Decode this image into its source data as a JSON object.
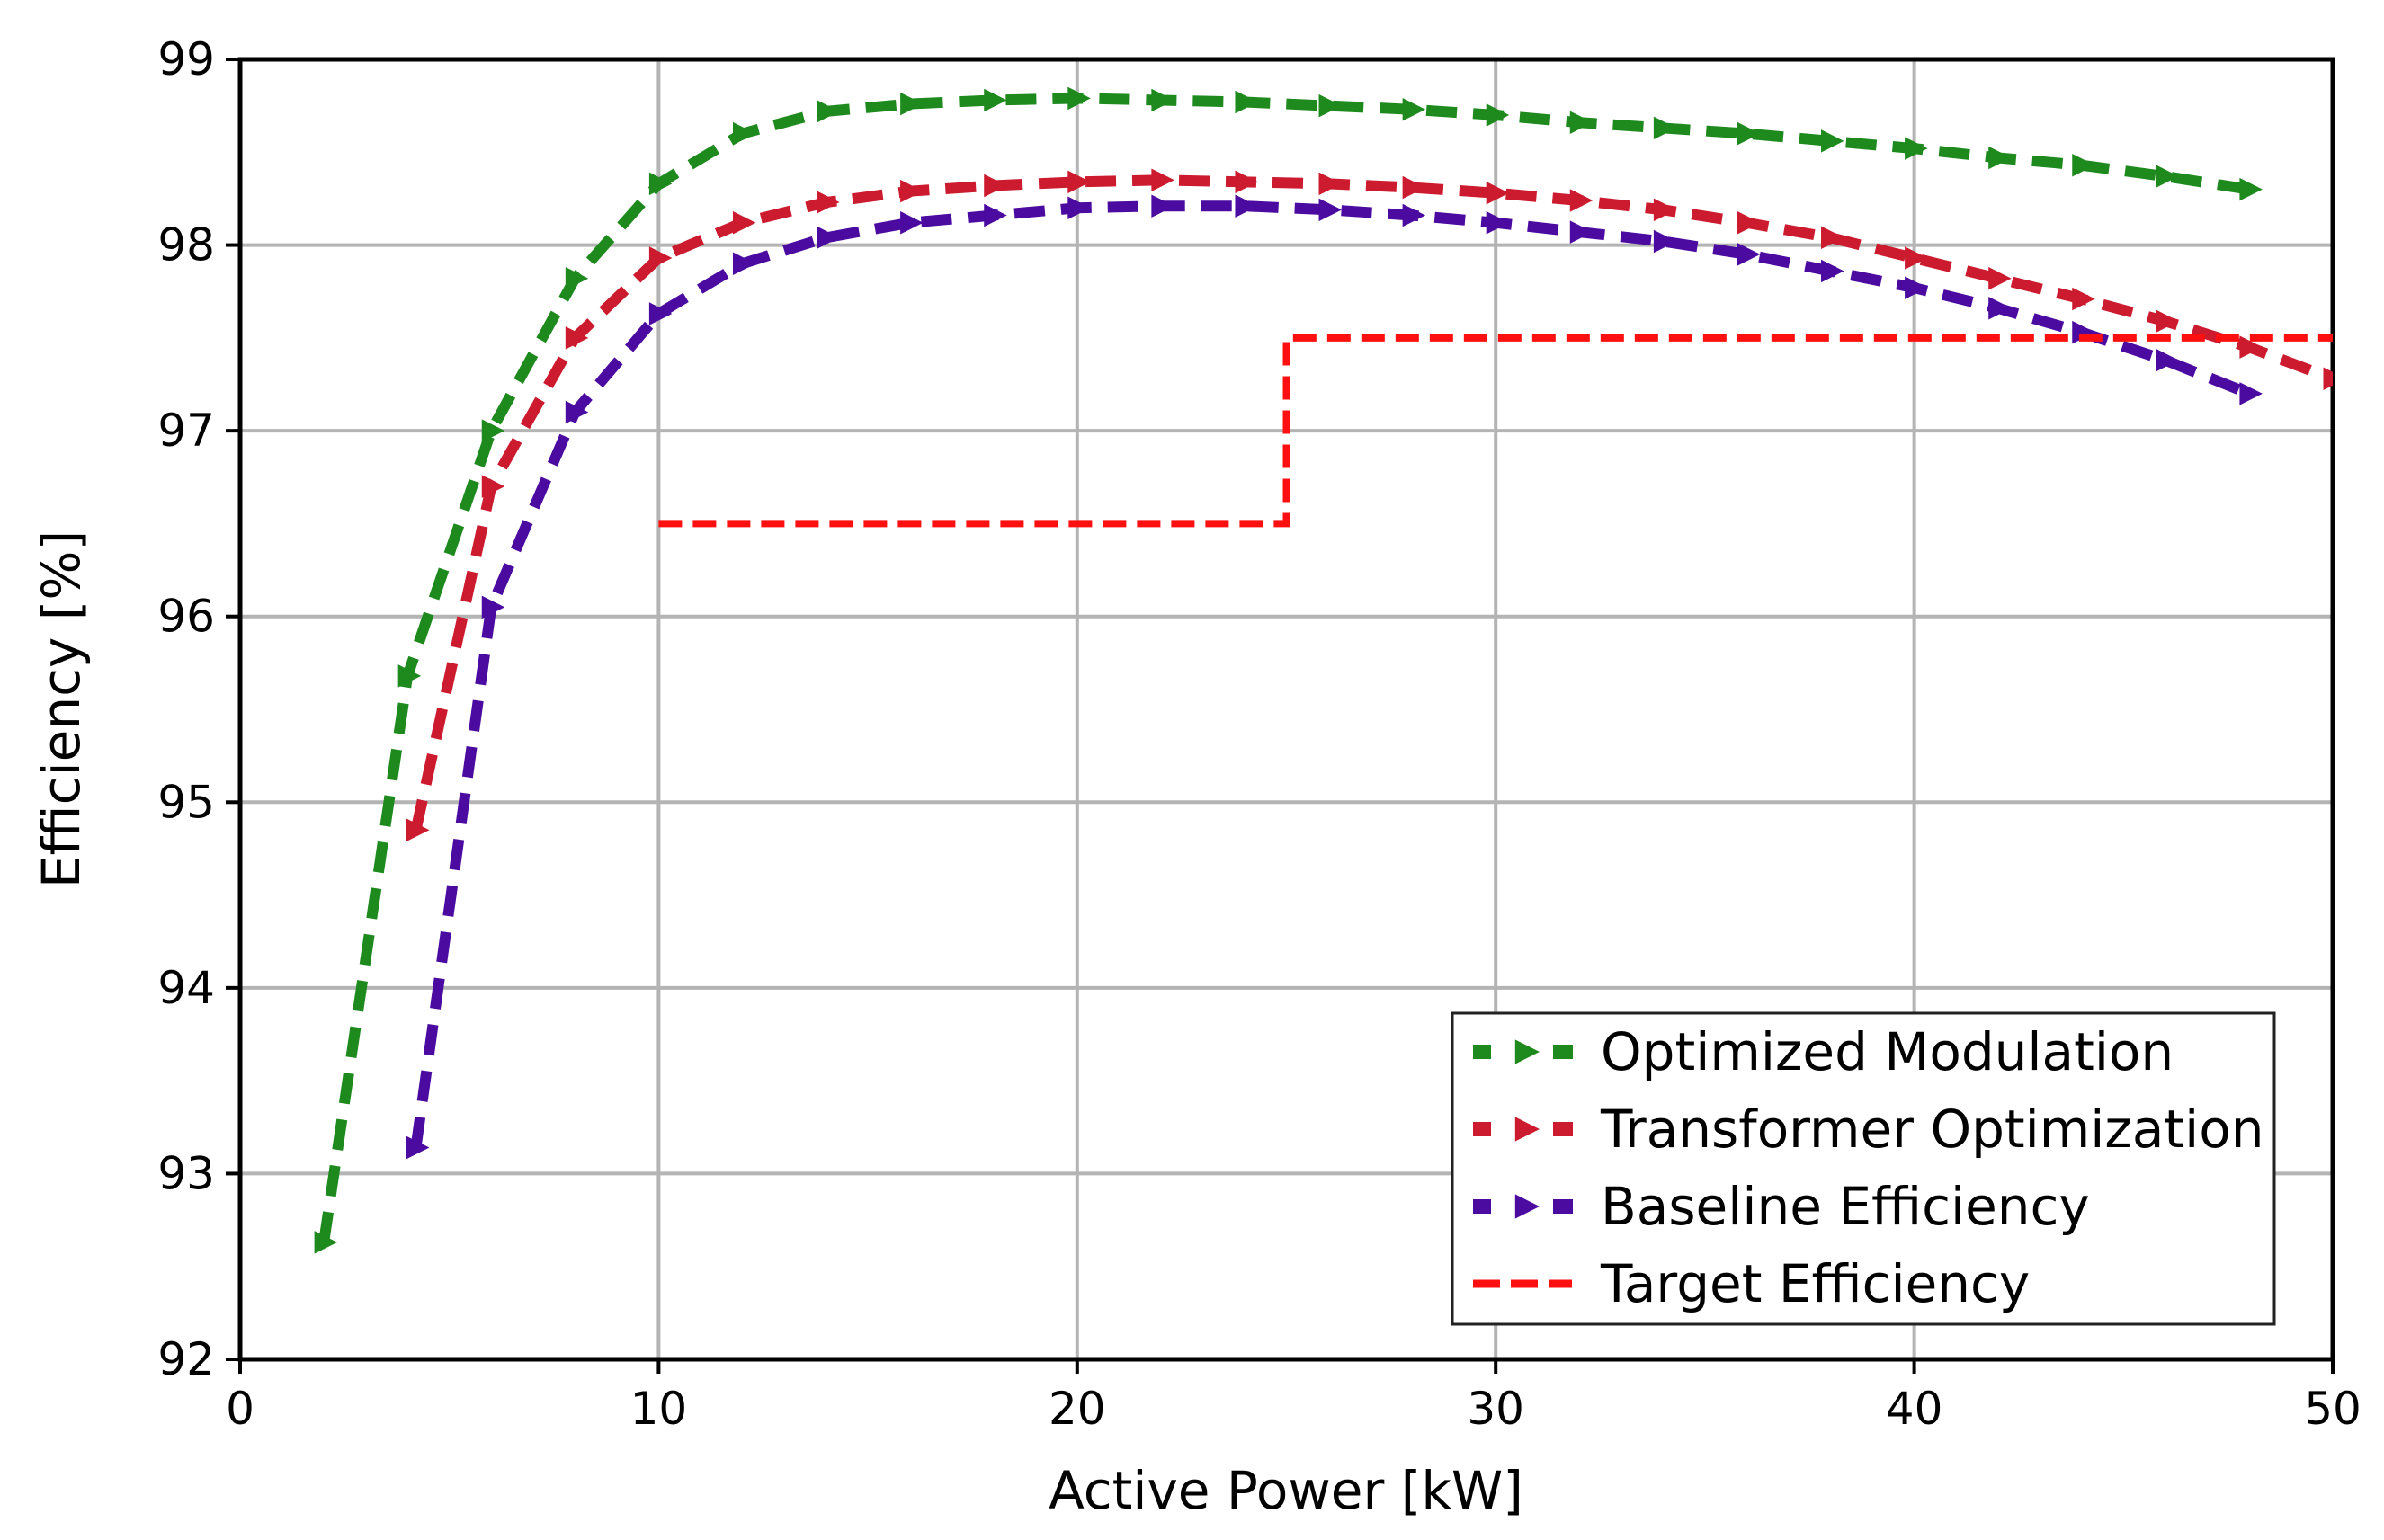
{
  "chart_data": {
    "type": "line",
    "title": "",
    "xlabel": "Active Power [kW]",
    "ylabel": "Efficiency [%]",
    "xlim": [
      0,
      50
    ],
    "ylim": [
      92,
      99
    ],
    "xticks": [
      0,
      10,
      20,
      30,
      40,
      50
    ],
    "yticks": [
      92,
      93,
      94,
      95,
      96,
      97,
      98,
      99
    ],
    "grid": true,
    "legend_position": "bottom-right",
    "series": [
      {
        "name": "Optimized Modulation",
        "color": "#1e8a1e",
        "style": "dashed",
        "marker": "triangle-right",
        "x": [
          2,
          4,
          6,
          8,
          10,
          12,
          14,
          16,
          18,
          20,
          22,
          24,
          26,
          28,
          30,
          32,
          34,
          36,
          38,
          40,
          42,
          44,
          46,
          48
        ],
        "y": [
          92.63,
          95.68,
          97.0,
          97.82,
          98.33,
          98.6,
          98.72,
          98.76,
          98.78,
          98.79,
          98.78,
          98.77,
          98.75,
          98.73,
          98.7,
          98.66,
          98.63,
          98.6,
          98.56,
          98.52,
          98.47,
          98.43,
          98.37,
          98.3
        ]
      },
      {
        "name": "Transformer Optimization",
        "color": "#cc1a2e",
        "style": "dashed",
        "marker": "triangle-right",
        "x": [
          4.2,
          6,
          8,
          10,
          12,
          14,
          16,
          18,
          20,
          22,
          24,
          26,
          28,
          30,
          32,
          34,
          36,
          38,
          40,
          42,
          44,
          46,
          48,
          50
        ],
        "y": [
          94.85,
          96.7,
          97.5,
          97.93,
          98.12,
          98.23,
          98.29,
          98.32,
          98.34,
          98.35,
          98.34,
          98.33,
          98.31,
          98.28,
          98.24,
          98.19,
          98.12,
          98.04,
          97.93,
          97.82,
          97.71,
          97.59,
          97.45,
          97.28
        ]
      },
      {
        "name": "Baseline Efficiency",
        "color": "#4b0aa0",
        "style": "dashed",
        "marker": "triangle-right",
        "x": [
          4.2,
          6,
          8,
          10,
          12,
          14,
          16,
          18,
          20,
          22,
          24,
          26,
          28,
          30,
          32,
          34,
          36,
          38,
          40,
          42,
          44,
          46,
          48
        ],
        "y": [
          93.14,
          96.05,
          97.1,
          97.63,
          97.9,
          98.04,
          98.12,
          98.16,
          98.2,
          98.21,
          98.21,
          98.19,
          98.16,
          98.12,
          98.07,
          98.02,
          97.95,
          97.86,
          97.77,
          97.66,
          97.53,
          97.38,
          97.2
        ]
      },
      {
        "name": "Target Efficiency",
        "color": "#ff1010",
        "style": "dashed",
        "marker": "none",
        "x": [
          10,
          25,
          25,
          50
        ],
        "y": [
          96.5,
          96.5,
          97.5,
          97.5
        ]
      }
    ]
  }
}
